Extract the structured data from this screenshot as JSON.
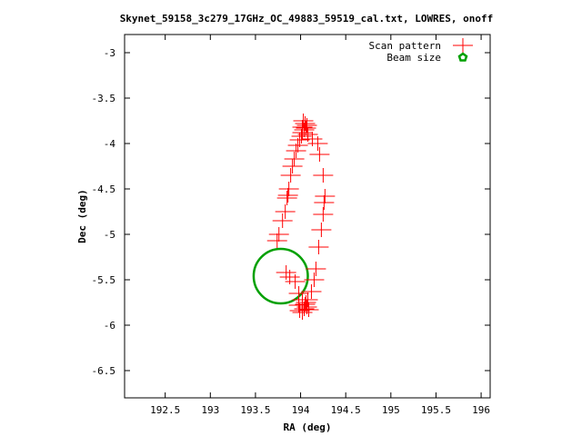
{
  "chart_data": {
    "type": "scatter",
    "title": "Skynet_59158_3c279_17GHz_OC_49883_59519_cal.txt, LOWRES, onoff",
    "xlabel": "RA (deg)",
    "ylabel": "Dec (deg)",
    "xlim": [
      192.05,
      196.1
    ],
    "ylim": [
      -6.8,
      -2.8
    ],
    "x_ticks": [
      "192.5",
      "193",
      "193.5",
      "194",
      "194.5",
      "195",
      "195.5",
      "196"
    ],
    "x_tick_values": [
      192.5,
      193,
      193.5,
      194,
      194.5,
      195,
      195.5,
      196
    ],
    "y_ticks": [
      "-3",
      "-3.5",
      "-4",
      "-4.5",
      "-5",
      "-5.5",
      "-6",
      "-6.5"
    ],
    "y_tick_values": [
      -3,
      -3.5,
      -4,
      -4.5,
      -5,
      -5.5,
      -6,
      -6.5
    ],
    "grid": false,
    "legend_position": "top-right",
    "series": [
      {
        "name": "Scan pattern",
        "marker": "plus",
        "color": "#ff0000",
        "x": [
          194.03,
          194.05,
          194.07,
          194.06,
          194.04,
          194.02,
          194.01,
          193.99,
          193.97,
          193.95,
          193.93,
          193.91,
          193.89,
          193.87,
          193.86,
          193.85,
          193.83,
          193.8,
          193.76,
          193.74,
          193.84,
          193.88,
          193.94,
          193.98,
          194.02,
          194.05,
          194.07,
          194.09,
          194.12,
          194.15,
          194.17,
          194.2,
          194.23,
          194.25,
          194.26,
          194.27,
          194.25,
          194.21,
          194.19,
          194.13,
          194.08,
          194.02,
          193.98,
          193.99,
          194.02,
          194.04,
          194.06,
          194.08
        ],
        "y": [
          -3.75,
          -3.78,
          -3.8,
          -3.83,
          -3.85,
          -3.88,
          -3.92,
          -3.96,
          -4.02,
          -4.08,
          -4.17,
          -4.25,
          -4.35,
          -4.5,
          -4.57,
          -4.6,
          -4.75,
          -4.85,
          -5.0,
          -5.07,
          -5.42,
          -5.47,
          -5.52,
          -5.65,
          -5.72,
          -5.77,
          -5.8,
          -5.83,
          -5.63,
          -5.5,
          -5.38,
          -5.14,
          -4.95,
          -4.78,
          -4.65,
          -4.58,
          -4.35,
          -4.12,
          -4.0,
          -3.95,
          -3.9,
          -3.82,
          -5.78,
          -5.84,
          -5.86,
          -5.82,
          -5.75,
          -5.72
        ]
      },
      {
        "name": "Beam size",
        "marker": "circle",
        "color": "#00a000",
        "center": [
          193.78,
          -5.46
        ],
        "radius": 0.3
      }
    ]
  }
}
